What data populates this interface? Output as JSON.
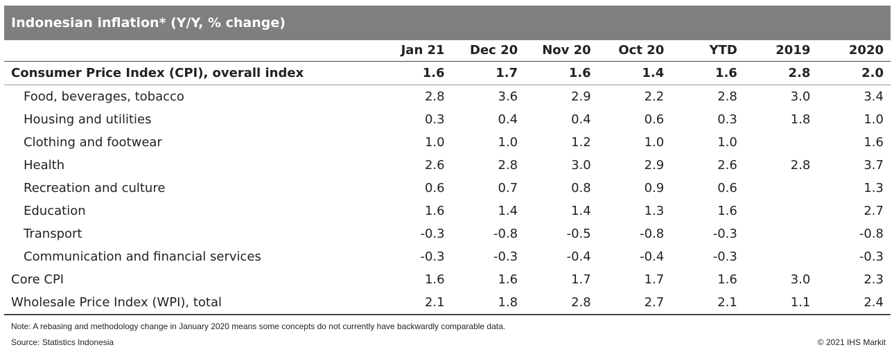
{
  "chart_data": {
    "type": "table",
    "title": "Indonesian inflation* (Y/Y, % change)",
    "columns": [
      "Jan 21",
      "Dec 20",
      "Nov 20",
      "Oct 20",
      "YTD",
      "2019",
      "2020"
    ],
    "rows": [
      {
        "label": "Consumer Price Index (CPI), overall index",
        "level": "main",
        "values": [
          "1.6",
          "1.7",
          "1.6",
          "1.4",
          "1.6",
          "2.8",
          "2.0"
        ]
      },
      {
        "label": "Food, beverages, tobacco",
        "level": "sub",
        "values": [
          "2.8",
          "3.6",
          "2.9",
          "2.2",
          "2.8",
          "3.0",
          "3.4"
        ]
      },
      {
        "label": "Housing and utilities",
        "level": "sub",
        "values": [
          "0.3",
          "0.4",
          "0.4",
          "0.6",
          "0.3",
          "1.8",
          "1.0"
        ]
      },
      {
        "label": "Clothing and footwear",
        "level": "sub",
        "values": [
          "1.0",
          "1.0",
          "1.2",
          "1.0",
          "1.0",
          "",
          "1.6"
        ]
      },
      {
        "label": "Health",
        "level": "sub",
        "values": [
          "2.6",
          "2.8",
          "3.0",
          "2.9",
          "2.6",
          "2.8",
          "3.7"
        ]
      },
      {
        "label": "Recreation and culture",
        "level": "sub",
        "values": [
          "0.6",
          "0.7",
          "0.8",
          "0.9",
          "0.6",
          "",
          "1.3"
        ]
      },
      {
        "label": "Education",
        "level": "sub",
        "values": [
          "1.6",
          "1.4",
          "1.4",
          "1.3",
          "1.6",
          "",
          "2.7"
        ]
      },
      {
        "label": "Transport",
        "level": "sub",
        "values": [
          "-0.3",
          "-0.8",
          "-0.5",
          "-0.8",
          "-0.3",
          "",
          "-0.8"
        ]
      },
      {
        "label": "Communication and financial services",
        "level": "sub",
        "values": [
          "-0.3",
          "-0.3",
          "-0.4",
          "-0.4",
          "-0.3",
          "",
          "-0.3"
        ]
      },
      {
        "label": "Core CPI",
        "level": "top",
        "values": [
          "1.6",
          "1.6",
          "1.7",
          "1.7",
          "1.6",
          "3.0",
          "2.3"
        ]
      },
      {
        "label": "Wholesale Price Index (WPI), total",
        "level": "top",
        "values": [
          "2.1",
          "1.8",
          "2.8",
          "2.7",
          "2.1",
          "1.1",
          "2.4"
        ]
      }
    ]
  },
  "footer": {
    "note": "Note: A rebasing and methodology change in January 2020 means some concepts do not currently have backwardly comparable data.",
    "source": "Source: Statistics Indonesia",
    "copyright": "© 2021 IHS Markit"
  }
}
